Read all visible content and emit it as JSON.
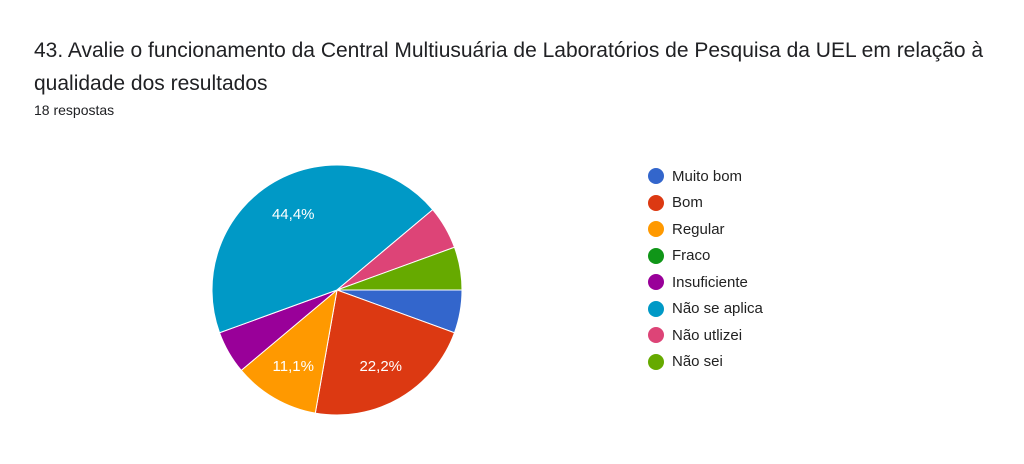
{
  "chart_data": {
    "type": "pie",
    "title": "43. Avalie o funcionamento da Central Multiusuária de Laboratórios de Pesquisa da UEL em relação à qualidade dos resultados",
    "subtitle": "18 respostas",
    "legend_position": "right",
    "categories": [
      "Muito bom",
      "Bom",
      "Regular",
      "Fraco",
      "Insuficiente",
      "Não se aplica",
      "Não utlizei",
      "Não sei"
    ],
    "values": [
      1,
      4,
      2,
      0,
      1,
      8,
      1,
      1
    ],
    "data_labels": [
      "",
      "22,2%",
      "11,1%",
      "",
      "",
      "44,4%",
      "",
      ""
    ],
    "colors": [
      "#3366cc",
      "#dc3912",
      "#ff9900",
      "#109618",
      "#990099",
      "#0099c6",
      "#dd4477",
      "#66aa00"
    ]
  }
}
